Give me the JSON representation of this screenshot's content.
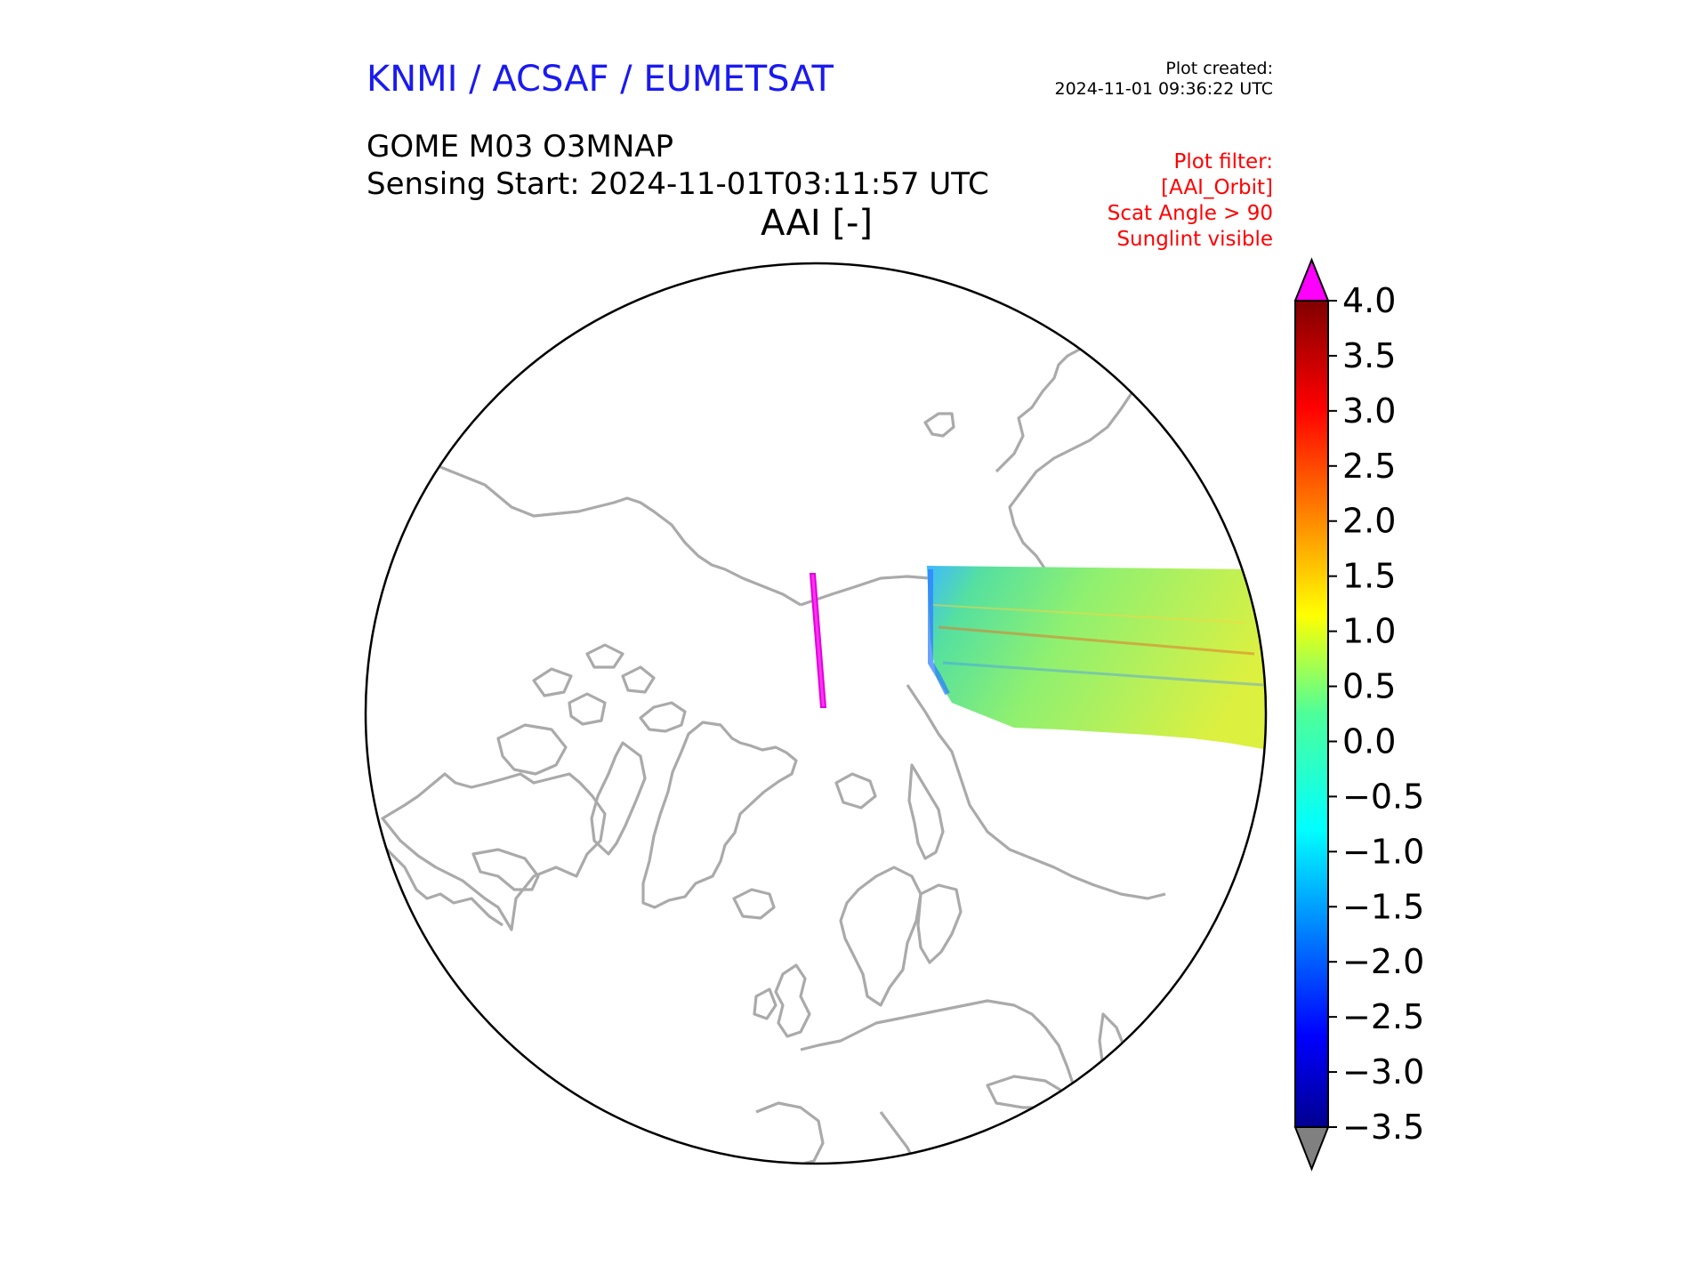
{
  "header": {
    "organisation": "KNMI / ACSAF / EUMETSAT",
    "plot_created_label": "Plot created:",
    "plot_created_date": "2024-11-01 09:36:22 UTC",
    "product": "GOME M03 O3MNAP",
    "sensing_start": "Sensing Start: 2024-11-01T03:11:57 UTC",
    "map_title": "AAI [-]",
    "plot_filter": [
      "Plot filter:",
      "[AAI_Orbit]",
      "Scat Angle > 90",
      "Sunglint visible"
    ]
  },
  "map": {
    "projection": "north-polar-stereographic",
    "coastline_color": "#aaaaaa",
    "outline_color": "#000000",
    "swaths": [
      {
        "name": "",
        "value_range": [
          -1.5,
          1.5
        ],
        "typical": 0.3
      },
      {
        "name": "",
        "value_range": [
          4.0,
          4.0
        ],
        "typical": 4.0
      }
    ]
  },
  "colorbar": {
    "min": -3.5,
    "max": 4.0,
    "ticks": [
      "4.0",
      "3.5",
      "3.0",
      "2.5",
      "2.0",
      "1.5",
      "1.0",
      "0.5",
      "0.0",
      "−0.5",
      "−1.0",
      "−1.5",
      "−2.0",
      "−2.5",
      "−3.0",
      "−3.5"
    ],
    "tick_values": [
      4.0,
      3.5,
      3.0,
      2.5,
      2.0,
      1.5,
      1.0,
      0.5,
      0.0,
      -0.5,
      -1.0,
      -1.5,
      -2.0,
      -2.5,
      -3.0,
      -3.5
    ],
    "over_color": "#ff00ff",
    "under_color": "#808080",
    "colormap": "jet"
  }
}
